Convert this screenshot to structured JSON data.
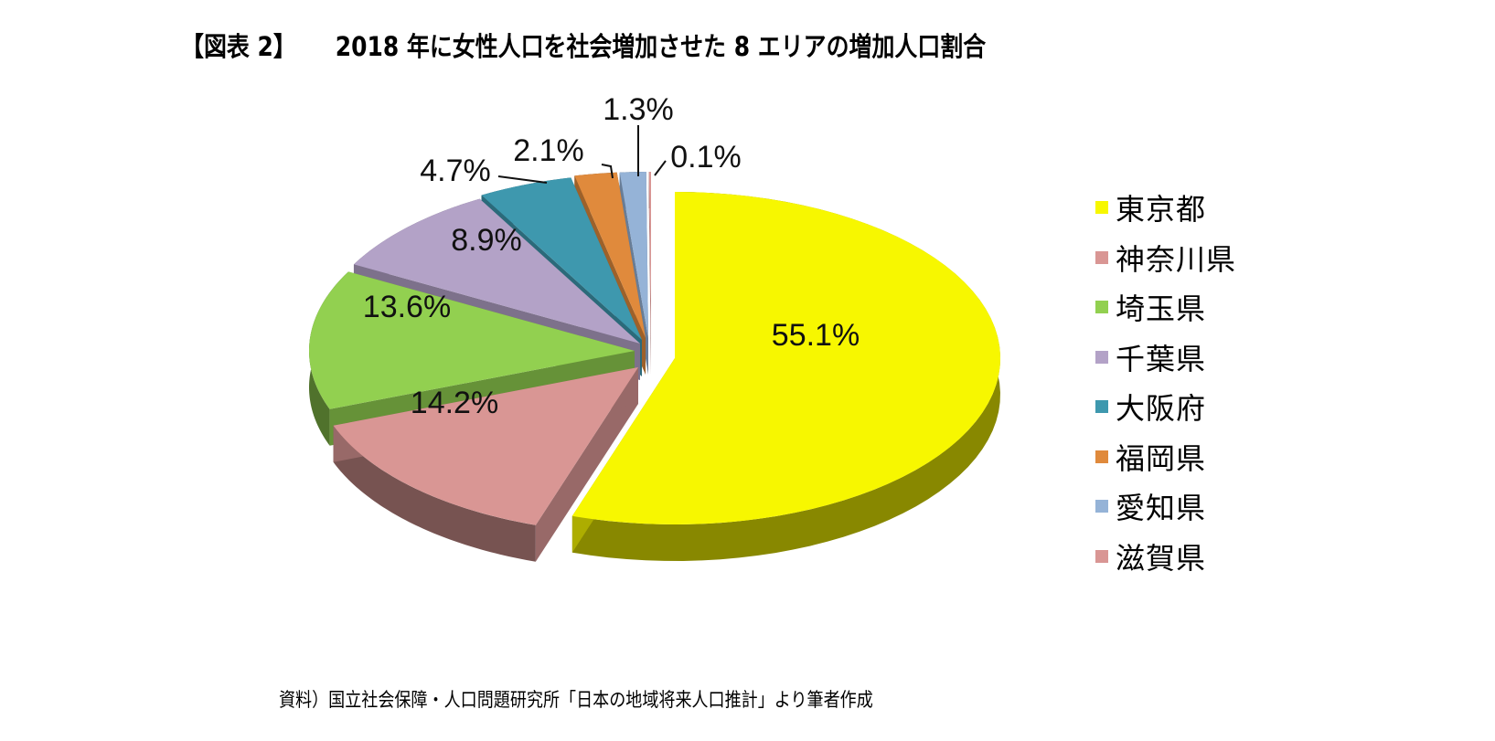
{
  "title": {
    "figure_no": "【図表 2】",
    "text": "2018 年に女性人口を社会増加させた 8 エリアの増加人口割合"
  },
  "source": "資料）国立社会保障・人口問題研究所「日本の地域将来人口推計」より筆者作成",
  "legend": {
    "position": "right",
    "items": [
      {
        "label": "東京都",
        "color": "#F7F700"
      },
      {
        "label": "神奈川県",
        "color": "#D99694"
      },
      {
        "label": "埼玉県",
        "color": "#92D050"
      },
      {
        "label": "千葉県",
        "color": "#B3A2C7"
      },
      {
        "label": "大阪府",
        "color": "#3E98AE"
      },
      {
        "label": "福岡県",
        "color": "#E08A3C"
      },
      {
        "label": "愛知県",
        "color": "#95B3D7"
      },
      {
        "label": "滋賀県",
        "color": "#D99694"
      }
    ]
  },
  "chart_data": {
    "type": "pie",
    "style": "3d-exploded",
    "title": "2018 年に女性人口を社会増加させた 8 エリアの増加人口割合",
    "categories": [
      "東京都",
      "神奈川県",
      "埼玉県",
      "千葉県",
      "大阪府",
      "福岡県",
      "愛知県",
      "滋賀県"
    ],
    "values": [
      55.1,
      14.2,
      13.6,
      8.9,
      4.7,
      2.1,
      1.3,
      0.1
    ],
    "labels": [
      "55.1%",
      "14.2%",
      "13.6%",
      "8.9%",
      "4.7%",
      "2.1%",
      "1.3%",
      "0.1%"
    ],
    "unit": "%",
    "colors": [
      "#F7F700",
      "#D99694",
      "#92D050",
      "#B3A2C7",
      "#3E98AE",
      "#E08A3C",
      "#95B3D7",
      "#D99694"
    ],
    "legend_position": "right"
  }
}
